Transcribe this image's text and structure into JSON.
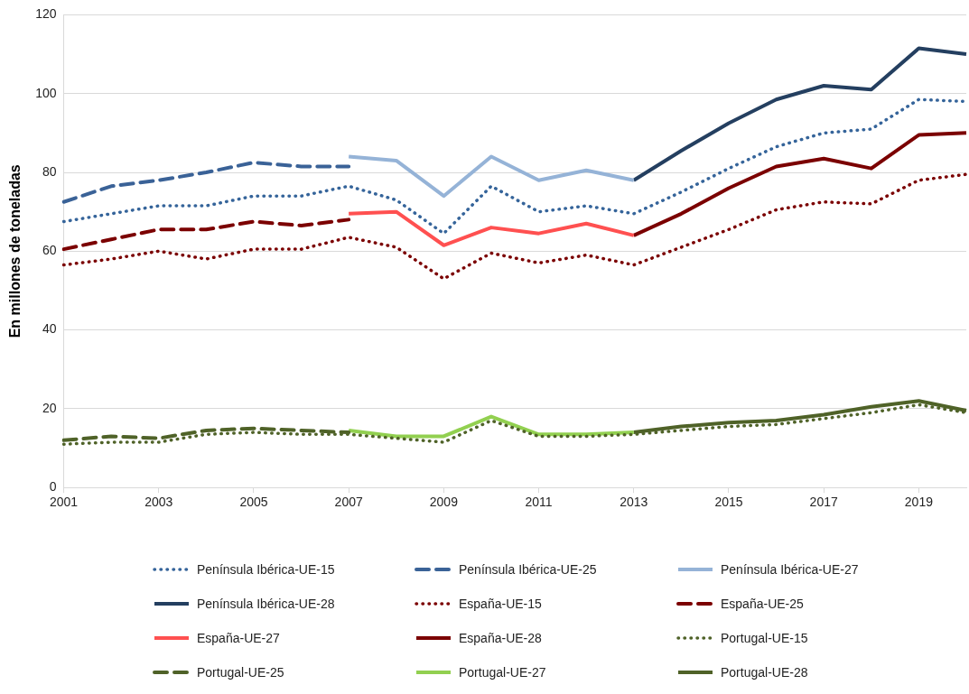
{
  "chart_data": {
    "type": "line",
    "ylabel": "En millones de toneladas",
    "categories": [
      "2001",
      null,
      "2003",
      null,
      "2005",
      null,
      "2007",
      null,
      "2009",
      null,
      "2011",
      null,
      "2013",
      null,
      "2015",
      null,
      "2017",
      null,
      "2019",
      null
    ],
    "ylim": [
      0,
      120
    ],
    "yticks": [
      0,
      20,
      40,
      60,
      80,
      100,
      120
    ],
    "grid": "y",
    "legend": "bottom",
    "marker": "none",
    "series": [
      {
        "name": "Península Ibérica-UE-15",
        "color": "#35649a",
        "line_style": "dotted",
        "values": [
          67.5,
          69.5,
          71.5,
          71.5,
          74,
          74,
          76.5,
          73,
          64.5,
          76.5,
          70,
          71.5,
          69.5,
          75,
          81,
          86.5,
          90,
          91,
          98.5,
          98
        ]
      },
      {
        "name": "Península Ibérica-UE-25",
        "color": "#3a6297",
        "line_style": "dashed",
        "values": [
          72.5,
          76.5,
          78,
          80,
          82.5,
          81.5,
          81.5,
          null,
          null,
          null,
          null,
          null,
          null,
          null,
          null,
          null,
          null,
          null,
          null,
          null
        ]
      },
      {
        "name": "Península Ibérica-UE-27",
        "color": "#95b3d7",
        "line_style": "solid",
        "values": [
          null,
          null,
          null,
          null,
          null,
          null,
          84,
          83,
          74,
          84,
          78,
          80.5,
          78,
          null,
          null,
          null,
          null,
          null,
          null,
          null
        ]
      },
      {
        "name": "Península Ibérica-UE-28",
        "color": "#243f60",
        "line_style": "solid",
        "values": [
          null,
          null,
          null,
          null,
          null,
          null,
          null,
          null,
          null,
          null,
          null,
          null,
          78,
          85.5,
          92.5,
          98.5,
          102,
          101,
          111.5,
          110
        ]
      },
      {
        "name": "España-UE-15",
        "color": "#7b0000",
        "line_style": "dotted",
        "values": [
          56.5,
          58,
          60,
          58,
          60.5,
          60.5,
          63.5,
          61,
          53,
          59.5,
          57,
          59,
          56.5,
          61,
          65.5,
          70.5,
          72.5,
          72,
          78,
          79.5
        ]
      },
      {
        "name": "España-UE-25",
        "color": "#7b0000",
        "line_style": "dashed",
        "values": [
          60.5,
          63,
          65.5,
          65.5,
          67.5,
          66.5,
          68,
          null,
          null,
          null,
          null,
          null,
          null,
          null,
          null,
          null,
          null,
          null,
          null,
          null
        ]
      },
      {
        "name": "España-UE-27",
        "color": "#ff5050",
        "line_style": "solid",
        "values": [
          null,
          null,
          null,
          null,
          null,
          null,
          69.5,
          70,
          61.5,
          66,
          64.5,
          67,
          64,
          null,
          null,
          null,
          null,
          null,
          null,
          null
        ]
      },
      {
        "name": "España-UE-28",
        "color": "#7b0000",
        "line_style": "solid",
        "values": [
          null,
          null,
          null,
          null,
          null,
          null,
          null,
          null,
          null,
          null,
          null,
          null,
          64,
          69.5,
          76,
          81.5,
          83.5,
          81,
          89.5,
          90
        ]
      },
      {
        "name": "Portugal-UE-15",
        "color": "#4f6228",
        "line_style": "dotted",
        "values": [
          11,
          11.5,
          11.5,
          13.5,
          14,
          13.5,
          13.5,
          12.5,
          11.5,
          17,
          13,
          13,
          13.5,
          14.5,
          15.5,
          16,
          17.5,
          19,
          21,
          19
        ]
      },
      {
        "name": "Portugal-UE-25",
        "color": "#4f6228",
        "line_style": "dashed",
        "values": [
          12,
          13,
          12.5,
          14.5,
          15,
          14.5,
          14,
          null,
          null,
          null,
          null,
          null,
          null,
          null,
          null,
          null,
          null,
          null,
          null,
          null
        ]
      },
      {
        "name": "Portugal-UE-27",
        "color": "#92d050",
        "line_style": "solid",
        "values": [
          null,
          null,
          null,
          null,
          null,
          null,
          14.5,
          13,
          13,
          18,
          13.5,
          13.5,
          14,
          null,
          null,
          null,
          null,
          null,
          null,
          null
        ]
      },
      {
        "name": "Portugal-UE-28",
        "color": "#4f6228",
        "line_style": "solid",
        "values": [
          null,
          null,
          null,
          null,
          null,
          null,
          null,
          null,
          null,
          null,
          null,
          null,
          14,
          15.5,
          16.5,
          17,
          18.5,
          20.5,
          22,
          19.5
        ]
      }
    ]
  }
}
